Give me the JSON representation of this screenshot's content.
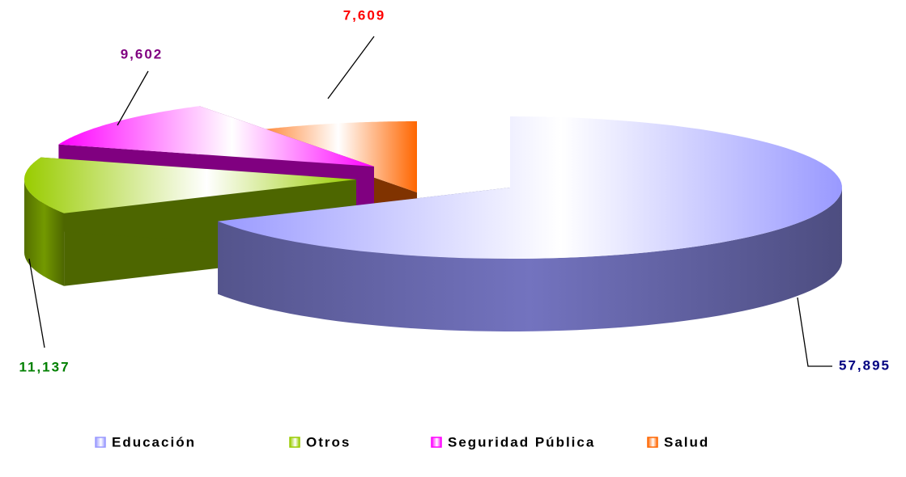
{
  "chart_data": {
    "type": "pie",
    "categories": [
      "Educación",
      "Otros",
      "Seguridad Pública",
      "Salud"
    ],
    "values": [
      57895,
      11137,
      9602,
      7609
    ],
    "value_labels": [
      "57,895",
      "11,137",
      "9,602",
      "7,609"
    ],
    "colors": [
      "#9999ff",
      "#99cc00",
      "#ff00ff",
      "#ff6600"
    ],
    "label_colors": [
      "#000080",
      "#008000",
      "#800080",
      "#ff0000"
    ],
    "legend": "bottom"
  }
}
